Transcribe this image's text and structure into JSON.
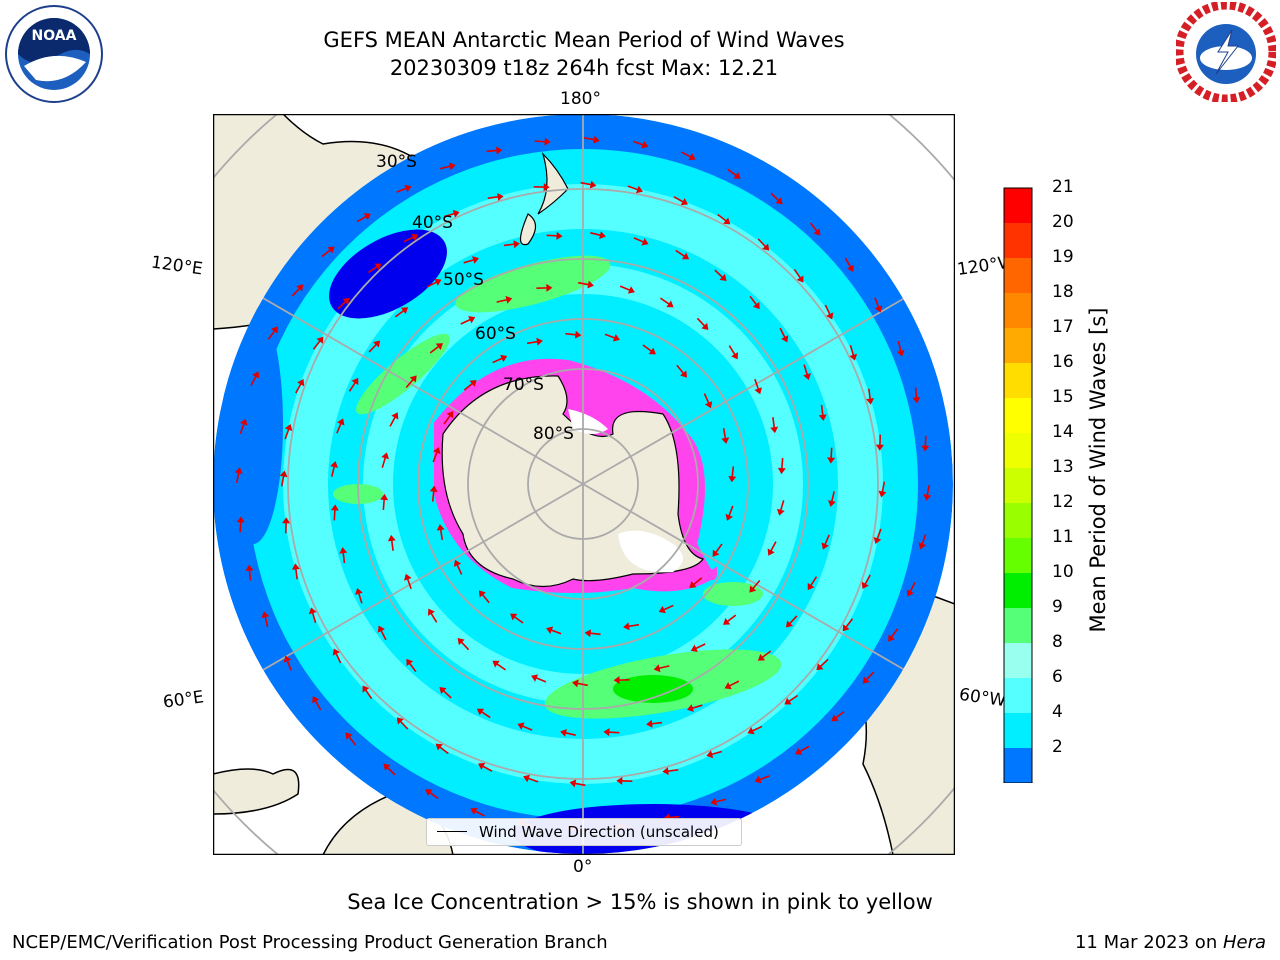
{
  "title": {
    "line1": "GEFS MEAN Antarctic Mean Period of Wind Waves",
    "line2": "20230309 t18z 264h fcst   Max: 12.21"
  },
  "logos": {
    "left": {
      "text": "NOAA",
      "name": "noaa-logo"
    },
    "right": {
      "name": "nws-logo"
    }
  },
  "map": {
    "longitude_labels": [
      "180°",
      "120°E",
      "120°W",
      "60°E",
      "60°W",
      "0°"
    ],
    "latitude_labels": [
      "30°S",
      "40°S",
      "50°S",
      "60°S",
      "70°S",
      "80°S"
    ]
  },
  "legend": {
    "label": "Wind Wave Direction (unscaled)"
  },
  "colorbar": {
    "label": "Mean Period of Wind Waves [s]",
    "ticks": [
      "21",
      "20",
      "19",
      "18",
      "17",
      "16",
      "15",
      "14",
      "13",
      "12",
      "11",
      "10",
      "9",
      "8",
      "6",
      "4",
      "2"
    ],
    "colors": [
      "#ff0000",
      "#ff3300",
      "#ff6600",
      "#ff8800",
      "#ffaa00",
      "#ffdd00",
      "#ffff00",
      "#eeff00",
      "#ccff00",
      "#99ff00",
      "#66ff00",
      "#00ee00",
      "#55ff77",
      "#99ffee",
      "#55ffff",
      "#00eeff",
      "#0077ff"
    ],
    "extend_color": "#0000ee"
  },
  "caption": "Sea Ice Concentration > 15% is shown in pink to yellow",
  "footer": {
    "left": "NCEP/EMC/Verification Post Processing Product Generation Branch",
    "right_date": "11 Mar 2023 on ",
    "right_host": "Hera"
  }
}
